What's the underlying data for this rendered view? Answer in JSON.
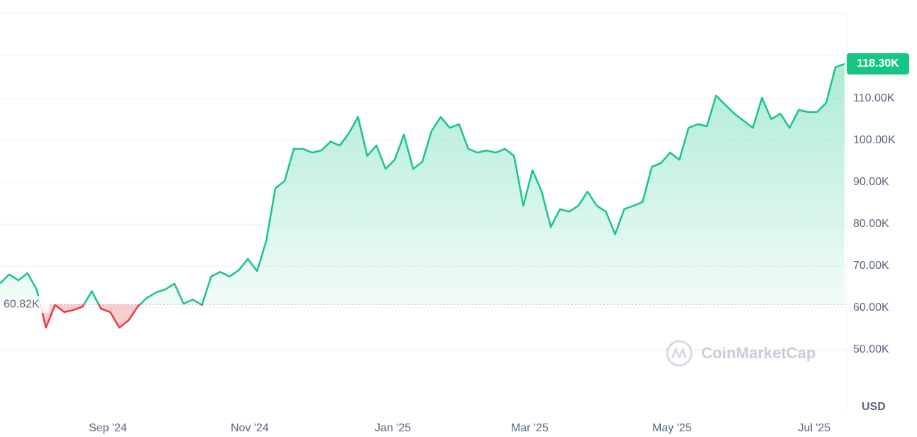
{
  "chart_data": {
    "type": "line",
    "values": [
      65.8,
      68,
      66.6,
      68.3,
      64.4,
      55.3,
      60.7,
      59,
      59.5,
      60.3,
      64,
      59.8,
      59,
      55.3,
      57,
      60.3,
      62.4,
      63.7,
      64.4,
      65.8,
      61,
      62,
      60.7,
      67.5,
      68.6,
      67.5,
      69,
      71.7,
      68.8,
      76,
      88.6,
      90.3,
      98,
      98,
      97.1,
      97.6,
      99.7,
      98.8,
      101.7,
      105.6,
      96.3,
      98.8,
      93.2,
      95.4,
      101.4,
      93.2,
      94.9,
      102.2,
      105.6,
      103,
      103.9,
      98,
      97.1,
      97.6,
      97.1,
      98,
      96.3,
      84.4,
      92.9,
      87.8,
      79.3,
      83.6,
      83,
      84.4,
      87.8,
      84.4,
      83,
      77.6,
      83.6,
      84.4,
      85.3,
      93.7,
      94.6,
      97.1,
      95.4,
      103,
      103.9,
      103.4,
      110.7,
      108.5,
      106.4,
      104.7,
      103,
      110.2,
      105.1,
      106.4,
      103,
      107.3,
      106.8,
      106.8,
      109,
      117.5,
      118.3
    ],
    "value_labels": {
      "92": "118.30K"
    },
    "baseline": {
      "value": 60.82,
      "label": "60.82K"
    },
    "up_color": "#16c784",
    "down_color": "#ea3943",
    "xlim": [
      0,
      92
    ],
    "xticks": [
      {
        "value": 11.75,
        "label": "Sep '24"
      },
      {
        "value": 27.2,
        "label": "Nov '24"
      },
      {
        "value": 42.8,
        "label": "Jan '25"
      },
      {
        "value": 57.7,
        "label": "Mar '25"
      },
      {
        "value": 73.2,
        "label": "May '25"
      },
      {
        "value": 88.7,
        "label": "Jul '25"
      }
    ],
    "ylim": [
      35.6,
      130.5
    ],
    "yticks": [
      {
        "value": 50,
        "label": "50.00K"
      },
      {
        "value": 60,
        "label": "60.00K"
      },
      {
        "value": 70,
        "label": "70.00K"
      },
      {
        "value": 80,
        "label": "80.00K"
      },
      {
        "value": 90,
        "label": "90.00K"
      },
      {
        "value": 100,
        "label": "100.00K"
      },
      {
        "value": 110,
        "label": "110.00K"
      }
    ],
    "y_unit": "USD",
    "watermark": "CoinMarketCap",
    "grid": true
  }
}
